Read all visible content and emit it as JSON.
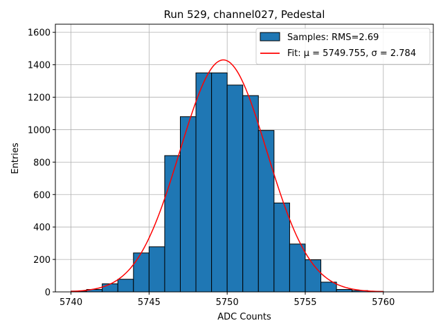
{
  "chart_data": {
    "type": "bar",
    "title": "Run 529, channel027, Pedestal",
    "xlabel": "ADC Counts",
    "ylabel": "Entries",
    "xlim": [
      5739.0,
      5763.2
    ],
    "ylim": [
      0,
      1650
    ],
    "xticks": [
      5740,
      5745,
      5750,
      5755,
      5760
    ],
    "yticks": [
      0,
      200,
      400,
      600,
      800,
      1000,
      1200,
      1400,
      1600
    ],
    "grid": true,
    "legend_position": "top-right",
    "histogram": {
      "name": "Samples: RMS=2.69",
      "color": "#1f77b4",
      "bin_edges": [
        5740,
        5741,
        5742,
        5743,
        5744,
        5745,
        5746,
        5747,
        5748,
        5749,
        5750,
        5751,
        5752,
        5753,
        5754,
        5755,
        5756,
        5757,
        5758,
        5759,
        5760
      ],
      "counts": [
        5,
        15,
        50,
        78,
        240,
        278,
        840,
        1080,
        1350,
        1350,
        1275,
        1210,
        995,
        548,
        295,
        198,
        60,
        15,
        8,
        3
      ]
    },
    "fit": {
      "name": "Fit: μ = 5749.755, σ = 2.784",
      "mu": 5749.755,
      "sigma": 2.784,
      "peak": 1430,
      "range": [
        5740,
        5760
      ],
      "color": "#ff0000"
    }
  }
}
